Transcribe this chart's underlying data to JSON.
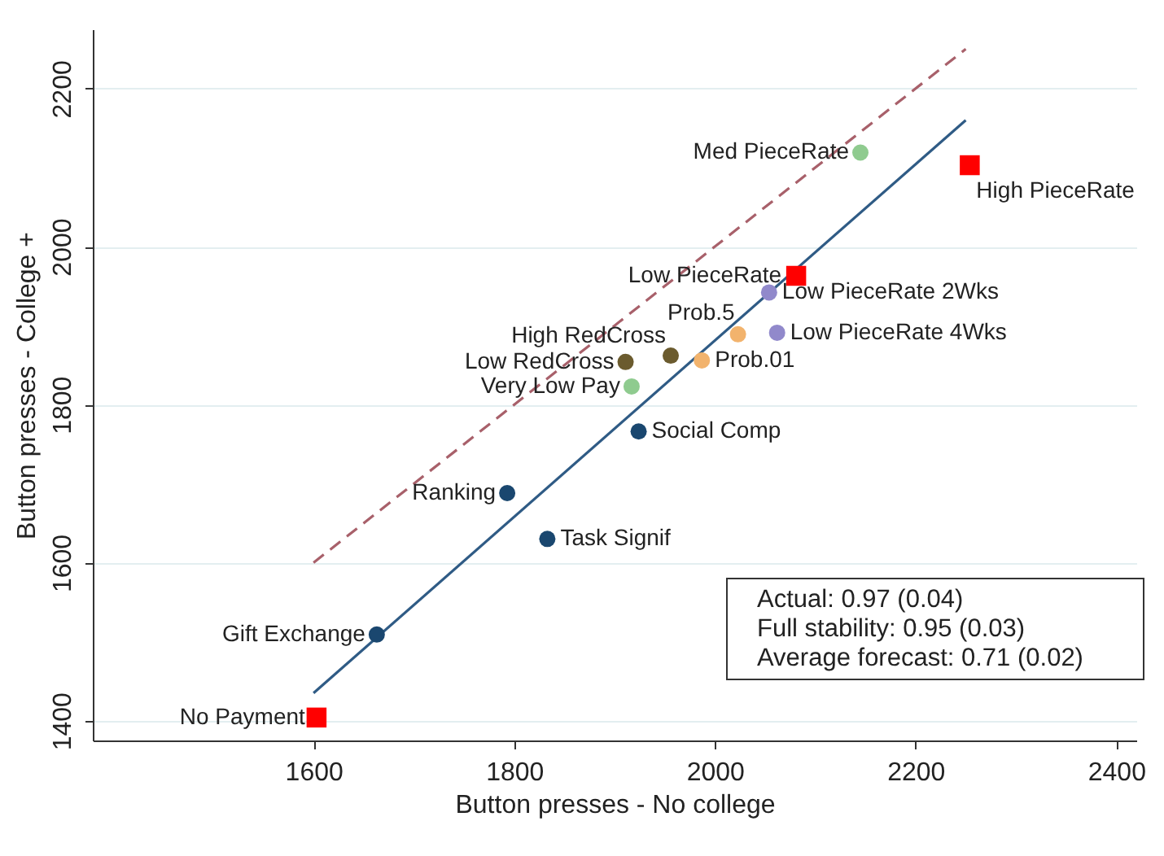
{
  "chart_data": {
    "type": "scatter",
    "xlabel": "Button presses - No college",
    "ylabel": "Button presses - College +",
    "xlim": [
      1380,
      2420
    ],
    "ylim": [
      1375,
      2275
    ],
    "xticks": [
      1600,
      1800,
      2000,
      2200,
      2400
    ],
    "yticks": [
      1400,
      1600,
      1800,
      2000,
      2200
    ],
    "grid": "y",
    "series": [
      {
        "color": "#ff0000",
        "marker": "square",
        "x": [
          1603,
          2081,
          2254
        ],
        "values": [
          1404,
          1963,
          2103
        ]
      },
      {
        "color": "#1a476f",
        "marker": "circle",
        "x": [
          1663,
          1793,
          1833,
          1924
        ],
        "values": [
          1509,
          1688,
          1630,
          1766
        ]
      },
      {
        "color": "#8fcb8f",
        "marker": "circle",
        "x": [
          1917,
          2145
        ],
        "values": [
          1823,
          2119
        ]
      },
      {
        "color": "#6b5b2e",
        "marker": "circle",
        "x": [
          1911,
          1956
        ],
        "values": [
          1854,
          1862
        ]
      },
      {
        "color": "#f2b36d",
        "marker": "circle",
        "x": [
          1987,
          2023
        ],
        "values": [
          1856,
          1889
        ]
      },
      {
        "color": "#9189cb",
        "marker": "circle",
        "x": [
          2054,
          2062
        ],
        "values": [
          1942,
          1891
        ]
      },
      {
        "type": "line",
        "color": "#2f5b85",
        "line_style": "solid",
        "x": [
          1600,
          2250
        ],
        "values": [
          1435,
          2160
        ]
      },
      {
        "type": "line",
        "color": "#a8606a",
        "line_style": "dashed",
        "x": [
          1600,
          2250
        ],
        "values": [
          1600,
          2250
        ]
      }
    ],
    "annotations": [
      {
        "text": "No Payment",
        "x": 1603,
        "y": 1404
      },
      {
        "text": "Gift Exchange",
        "x": 1663,
        "y": 1509
      },
      {
        "text": "Ranking",
        "x": 1793,
        "y": 1688
      },
      {
        "text": "Task Signif",
        "x": 1833,
        "y": 1630
      },
      {
        "text": "Social Comp",
        "x": 1924,
        "y": 1766
      },
      {
        "text": "Very Low Pay",
        "x": 1917,
        "y": 1823
      },
      {
        "text": "Low RedCross",
        "x": 1911,
        "y": 1854
      },
      {
        "text": "High RedCross",
        "x": 1956,
        "y": 1862
      },
      {
        "text": "Prob.01",
        "x": 1987,
        "y": 1856
      },
      {
        "text": "Prob.5",
        "x": 2023,
        "y": 1889
      },
      {
        "text": "Low PieceRate 4Wks",
        "x": 2062,
        "y": 1891
      },
      {
        "text": "Low PieceRate 2Wks",
        "x": 2054,
        "y": 1942
      },
      {
        "text": "Low PieceRate",
        "x": 2081,
        "y": 1963
      },
      {
        "text": "Med PieceRate",
        "x": 2145,
        "y": 2119
      },
      {
        "text": "High PieceRate",
        "x": 2254,
        "y": 2103
      },
      "Actual: 0.97 (0.04)",
      "Full stability: 0.95 (0.03)",
      "Average forecast: 0.71 (0.02)"
    ]
  }
}
